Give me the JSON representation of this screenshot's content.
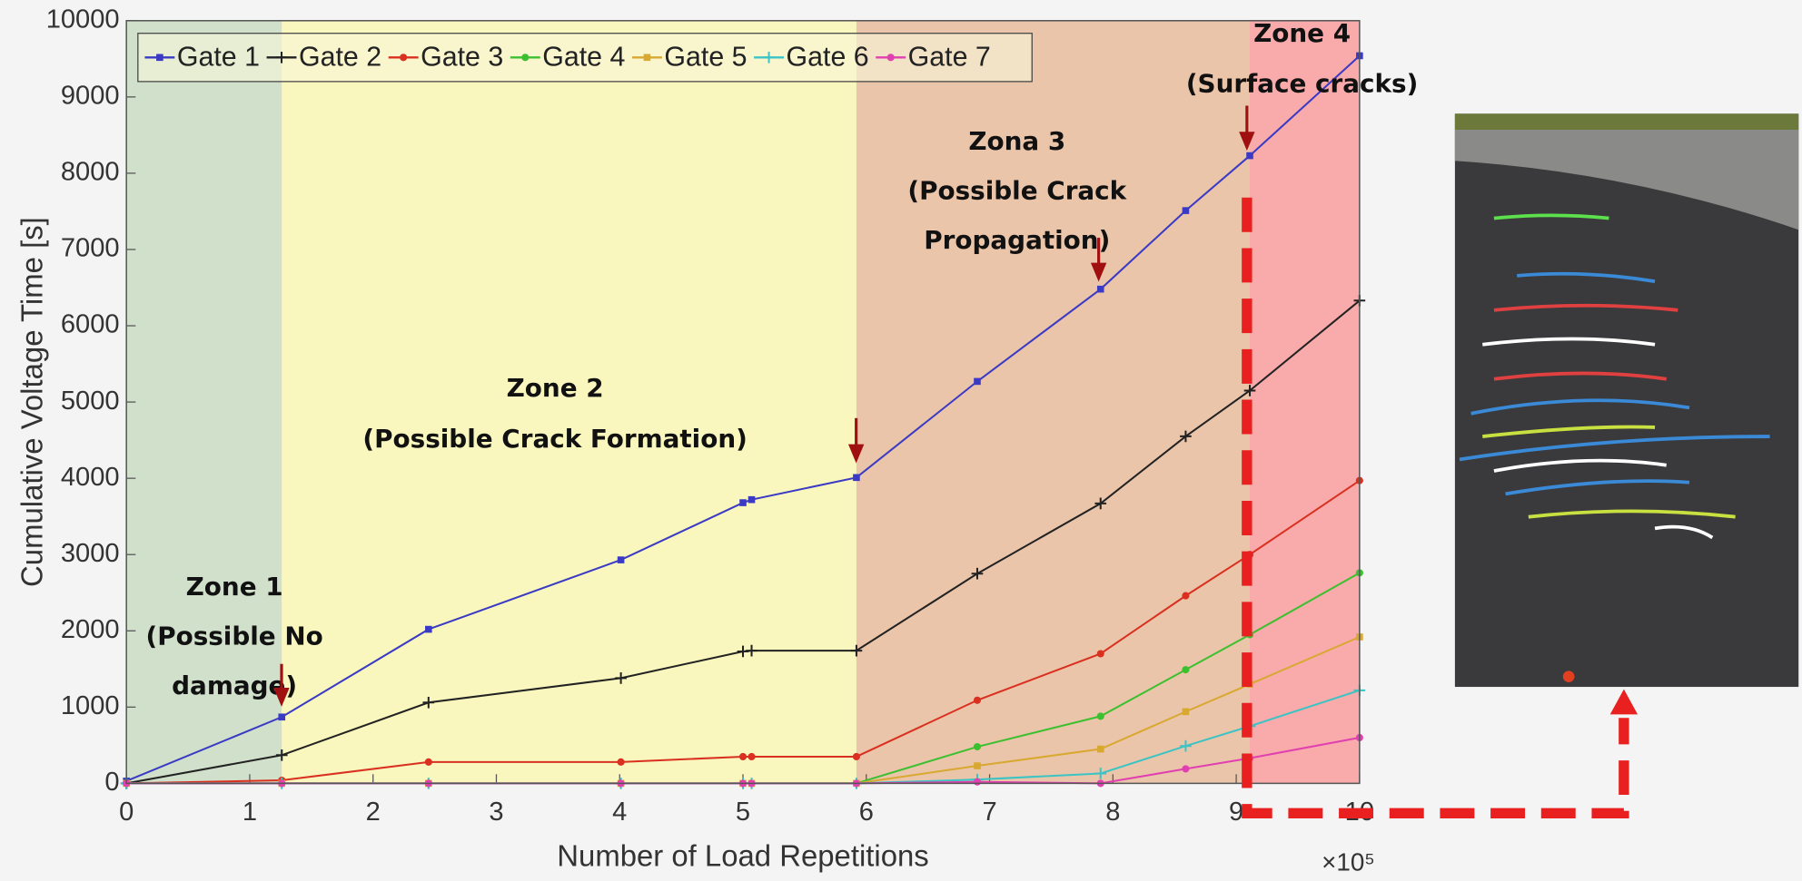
{
  "chart_data": {
    "type": "line",
    "x_label": "Number of Load Repetitions",
    "x_multiplier_label": "×10⁵",
    "y_label": "Cumulative Voltage Time [s]",
    "xlim": [
      0,
      10
    ],
    "xticks": [
      0,
      1,
      2,
      3,
      4,
      5,
      6,
      7,
      8,
      9,
      10
    ],
    "ylim": [
      0,
      10000
    ],
    "yticks": [
      0,
      1000,
      2000,
      3000,
      4000,
      5000,
      6000,
      7000,
      8000,
      9000,
      10000
    ],
    "legend_position": "top-left",
    "x": [
      0,
      1.26,
      2.45,
      4.01,
      5.0,
      5.07,
      5.92,
      6.9,
      7.9,
      8.59,
      9.11,
      10
    ],
    "series": [
      {
        "name": "Gate 1",
        "color": "#3a3ac4",
        "values": [
          30,
          870,
          2020,
          2930,
          3680,
          3720,
          4010,
          5270,
          6480,
          7510,
          8230,
          9540
        ]
      },
      {
        "name": "Gate 2",
        "color": "#222222",
        "values": [
          0,
          370,
          1060,
          1380,
          1730,
          1740,
          1740,
          2750,
          3670,
          4550,
          5150,
          6330
        ]
      },
      {
        "name": "Gate 3",
        "color": "#d93020",
        "values": [
          0,
          40,
          280,
          280,
          350,
          350,
          350,
          1090,
          1700,
          2460,
          3000,
          3970
        ]
      },
      {
        "name": "Gate 4",
        "color": "#3cc030",
        "values": [
          0,
          0,
          0,
          0,
          0,
          0,
          0,
          480,
          880,
          1490,
          1950,
          2760
        ]
      },
      {
        "name": "Gate 5",
        "color": "#d8a830",
        "values": [
          0,
          0,
          0,
          0,
          0,
          0,
          0,
          230,
          450,
          940,
          1300,
          1920
        ]
      },
      {
        "name": "Gate 6",
        "color": "#3cc4c4",
        "values": [
          0,
          0,
          0,
          0,
          0,
          0,
          0,
          50,
          130,
          490,
          750,
          1220
        ]
      },
      {
        "name": "Gate 7",
        "color": "#e040b0",
        "values": [
          0,
          0,
          0,
          0,
          0,
          0,
          0,
          20,
          0,
          190,
          330,
          600
        ]
      }
    ],
    "zones": [
      {
        "start": 0,
        "end": 1.26,
        "color": "#c9dcc2",
        "label": [
          "Zone 1",
          "(Possible No",
          "damage)"
        ]
      },
      {
        "start": 1.26,
        "end": 5.92,
        "color": "#f9f6b4",
        "label": [
          "Zone 2",
          "(Possible Crack Formation)"
        ]
      },
      {
        "start": 5.92,
        "end": 9.11,
        "color": "#e9bc9c",
        "label": [
          "Zona 3",
          "(Possible Crack",
          "Propagation)"
        ]
      },
      {
        "start": 9.11,
        "end": 10,
        "color": "#f99c9c",
        "label": [
          "Zone 4",
          "(Surface cracks)"
        ]
      }
    ]
  }
}
